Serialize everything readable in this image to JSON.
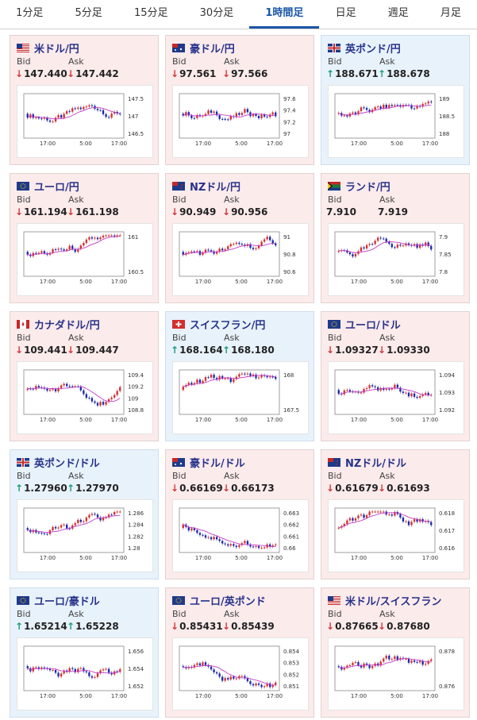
{
  "tabs": [
    {
      "label": "1分足",
      "active": false
    },
    {
      "label": "5分足",
      "active": false
    },
    {
      "label": "15分足",
      "active": false
    },
    {
      "label": "30分足",
      "active": false
    },
    {
      "label": "1時間足",
      "active": true
    },
    {
      "label": "日足",
      "active": false
    },
    {
      "label": "週足",
      "active": false
    },
    {
      "label": "月足",
      "active": false
    }
  ],
  "labels": {
    "bid": "Bid",
    "ask": "Ask"
  },
  "colors": {
    "up_bg": "#e8f2fb",
    "down_bg": "#fcebeb",
    "down_arrow": "#d23a3a",
    "up_arrow": "#1f9b7a",
    "candle_up": "#d32f2f",
    "candle_down": "#1a2aa8",
    "ma": "#c23cc7"
  },
  "cards": [
    {
      "pair": "米ドル/円",
      "flag": "us",
      "dir": "down",
      "bid": "147.440",
      "ask": "147.442",
      "y_ticks": [
        "147.5",
        "147",
        "146.5"
      ],
      "x_ticks": [
        "17:00",
        "5:00",
        "17:00"
      ]
    },
    {
      "pair": "豪ドル/円",
      "flag": "au",
      "dir": "down",
      "bid": "97.561",
      "ask": "97.566",
      "y_ticks": [
        "97.6",
        "97.4",
        "97.2",
        "97"
      ],
      "x_ticks": [
        "17:00",
        "5:00",
        "17:00"
      ]
    },
    {
      "pair": "英ポンド/円",
      "flag": "gb",
      "dir": "up",
      "bid": "188.671",
      "ask": "188.678",
      "y_ticks": [
        "189",
        "188.5",
        "188"
      ],
      "x_ticks": [
        "17:00",
        "5:00",
        "17:00"
      ]
    },
    {
      "pair": "ユーロ/円",
      "flag": "eu",
      "dir": "down",
      "bid": "161.194",
      "ask": "161.198",
      "y_ticks": [
        "161",
        "160.5"
      ],
      "x_ticks": [
        "17:00",
        "5:00",
        "17:00"
      ]
    },
    {
      "pair": "NZドル/円",
      "flag": "nz",
      "dir": "down",
      "bid": "90.949",
      "ask": "90.956",
      "y_ticks": [
        "91",
        "90.8",
        "90.6"
      ],
      "x_ticks": [
        "17:00",
        "5:00",
        "17:00"
      ]
    },
    {
      "pair": "ランド/円",
      "flag": "za",
      "dir": "none",
      "bid": "7.910",
      "ask": "7.919",
      "y_ticks": [
        "7.9",
        "7.85",
        "7.8"
      ],
      "x_ticks": [
        "17:00",
        "5:00",
        "17:00"
      ]
    },
    {
      "pair": "カナダドル/円",
      "flag": "ca",
      "dir": "down",
      "bid": "109.441",
      "ask": "109.447",
      "y_ticks": [
        "109.4",
        "109.2",
        "109",
        "108.8"
      ],
      "x_ticks": [
        "17:00",
        "5:00",
        "17:00"
      ]
    },
    {
      "pair": "スイスフラン/円",
      "flag": "ch",
      "dir": "up",
      "bid": "168.164",
      "ask": "168.180",
      "y_ticks": [
        "168",
        "167.5"
      ],
      "x_ticks": [
        "17:00",
        "5:00",
        "17:00"
      ]
    },
    {
      "pair": "ユーロ/ドル",
      "flag": "eu",
      "dir": "down",
      "bid": "1.09327",
      "ask": "1.09330",
      "y_ticks": [
        "1.094",
        "1.093",
        "1.092"
      ],
      "x_ticks": [
        "17:00",
        "5:00",
        "17:00"
      ]
    },
    {
      "pair": "英ポンド/ドル",
      "flag": "gb",
      "dir": "up",
      "bid": "1.27960",
      "ask": "1.27970",
      "y_ticks": [
        "1.286",
        "1.284",
        "1.282",
        "1.28"
      ],
      "x_ticks": [
        "17:00",
        "5:00",
        "17:00"
      ]
    },
    {
      "pair": "豪ドル/ドル",
      "flag": "au",
      "dir": "down",
      "bid": "0.66169",
      "ask": "0.66173",
      "y_ticks": [
        "0.663",
        "0.662",
        "0.661",
        "0.66"
      ],
      "x_ticks": [
        "17:00",
        "5:00",
        "17:00"
      ]
    },
    {
      "pair": "NZドル/ドル",
      "flag": "nz",
      "dir": "down",
      "bid": "0.61679",
      "ask": "0.61693",
      "y_ticks": [
        "0.618",
        "0.617",
        "0.616"
      ],
      "x_ticks": [
        "17:00",
        "5:00",
        "17:00"
      ]
    },
    {
      "pair": "ユーロ/豪ドル",
      "flag": "eu",
      "dir": "up",
      "bid": "1.65214",
      "ask": "1.65228",
      "y_ticks": [
        "1.656",
        "1.654",
        "1.652"
      ],
      "x_ticks": [
        "17:00",
        "5:00",
        "17:00"
      ]
    },
    {
      "pair": "ユーロ/英ポンド",
      "flag": "eu",
      "dir": "down",
      "bid": "0.85431",
      "ask": "0.85439",
      "y_ticks": [
        "0.854",
        "0.853",
        "0.852",
        "0.851"
      ],
      "x_ticks": [
        "17:00",
        "5:00",
        "17:00"
      ]
    },
    {
      "pair": "米ドル/スイスフラン",
      "flag": "us",
      "dir": "down",
      "bid": "0.87665",
      "ask": "0.87680",
      "y_ticks": [
        "0.878",
        "0.876"
      ],
      "x_ticks": [
        "17:00",
        "5:00",
        "17:00"
      ]
    }
  ]
}
